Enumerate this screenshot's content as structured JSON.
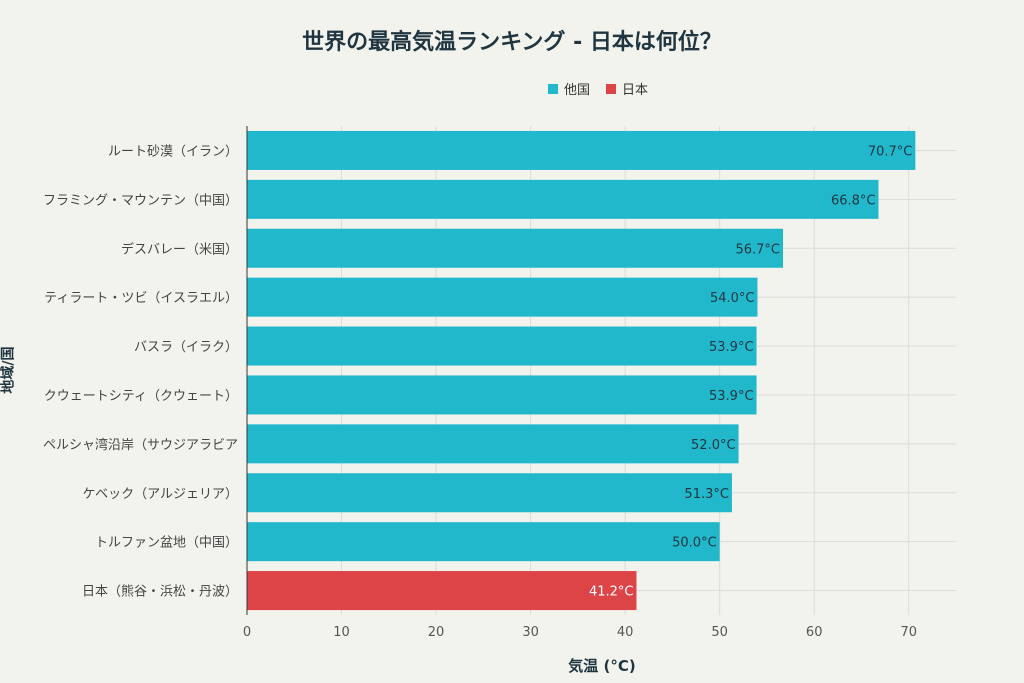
{
  "chart_data": {
    "type": "bar",
    "orientation": "horizontal",
    "title": "世界の最高気温ランキング - 日本は何位？",
    "xlabel": "気温 (°C)",
    "ylabel": "地域/国",
    "xlim": [
      0,
      75
    ],
    "xticks": [
      0,
      10,
      20,
      30,
      40,
      50,
      60,
      70
    ],
    "grid": true,
    "legend_position": "top",
    "legend": [
      {
        "name": "他国",
        "color": "#22b8cc"
      },
      {
        "name": "日本",
        "color": "#dc4448"
      }
    ],
    "categories": [
      "ルート砂漠（イラン）",
      "フラミング・マウンテン（中国）",
      "デスバレー（米国）",
      "ティラート・ツビ（イスラエル）",
      "バスラ（イラク）",
      "クウェートシティ（クウェート）",
      "ペルシャ湾沿岸（サウジアラビア",
      "ケベック（アルジェリア）",
      "トルファン盆地（中国）",
      "日本（熊谷・浜松・丹波）"
    ],
    "values": [
      70.7,
      66.8,
      56.7,
      54.0,
      53.9,
      53.9,
      52.0,
      51.3,
      50.0,
      41.2
    ],
    "value_labels": [
      "70.7°C",
      "66.8°C",
      "56.7°C",
      "54.0°C",
      "53.9°C",
      "53.9°C",
      "52.0°C",
      "51.3°C",
      "50.0°C",
      "41.2°C"
    ],
    "groups": [
      "他国",
      "他国",
      "他国",
      "他国",
      "他国",
      "他国",
      "他国",
      "他国",
      "他国",
      "日本"
    ]
  }
}
